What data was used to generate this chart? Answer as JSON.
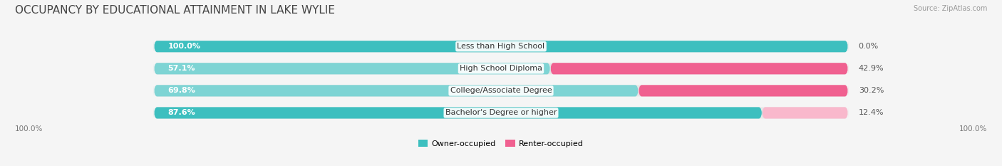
{
  "title": "OCCUPANCY BY EDUCATIONAL ATTAINMENT IN LAKE WYLIE",
  "source": "Source: ZipAtlas.com",
  "categories": [
    "Less than High School",
    "High School Diploma",
    "College/Associate Degree",
    "Bachelor's Degree or higher"
  ],
  "owner_pct": [
    100.0,
    57.1,
    69.8,
    87.6
  ],
  "renter_pct": [
    0.0,
    42.9,
    30.2,
    12.4
  ],
  "owner_color": "#3DBFBF",
  "owner_color_light": "#7ED4D4",
  "renter_color": "#F06090",
  "renter_color_light": "#F9B8CC",
  "bg_color": "#f5f5f5",
  "bar_bg_color": "#e8e8e8",
  "title_fontsize": 11,
  "label_fontsize": 8.0,
  "source_fontsize": 7.0,
  "bar_height": 0.52,
  "n_bars": 4
}
